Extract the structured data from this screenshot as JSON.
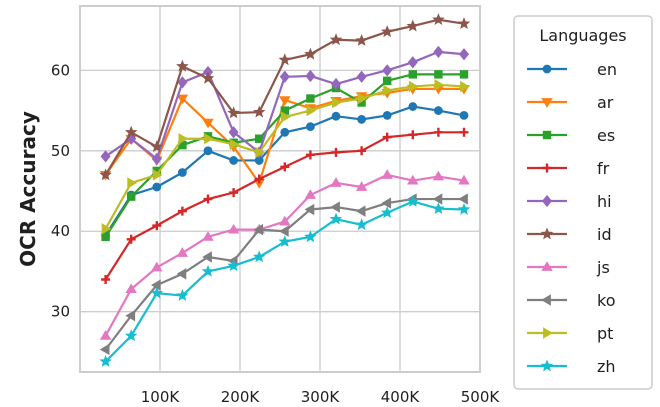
{
  "chart_data": {
    "type": "line",
    "title": "",
    "xlabel": "",
    "ylabel": "OCR Accuracy",
    "xlim": [
      0,
      500000
    ],
    "ylim": [
      22.5,
      68
    ],
    "grid": true,
    "x_ticks": [
      100000,
      200000,
      300000,
      400000,
      500000
    ],
    "x_tick_labels": [
      "100K",
      "200K",
      "300K",
      "400K",
      "500K"
    ],
    "y_ticks": [
      30,
      40,
      50,
      60
    ],
    "y_tick_labels": [
      "30",
      "40",
      "50",
      "60"
    ],
    "legend": {
      "title": "Languages",
      "placement": "right"
    },
    "x": [
      32000,
      64000,
      96000,
      128000,
      160000,
      192000,
      224000,
      256000,
      288000,
      320000,
      352000,
      384000,
      416000,
      448000,
      480000
    ],
    "series": [
      {
        "name": "en",
        "color": "#1f77b4",
        "marker": "circle",
        "values": [
          39.5,
          44.5,
          45.5,
          47.3,
          50.0,
          48.8,
          48.8,
          52.3,
          53.0,
          54.3,
          53.9,
          54.4,
          55.5,
          55.0,
          54.4
        ]
      },
      {
        "name": "ar",
        "color": "#ff7f0e",
        "marker": "triangle-down",
        "values": [
          47.0,
          51.5,
          48.8,
          56.5,
          53.5,
          50.5,
          46.0,
          56.3,
          55.3,
          56.2,
          56.8,
          57.2,
          57.7,
          57.7,
          57.7
        ]
      },
      {
        "name": "es",
        "color": "#2ca02c",
        "marker": "square",
        "values": [
          39.3,
          44.3,
          47.5,
          50.7,
          51.8,
          51.0,
          51.5,
          55.0,
          56.5,
          57.8,
          56.0,
          58.7,
          59.5,
          59.5,
          59.5
        ]
      },
      {
        "name": "fr",
        "color": "#d62728",
        "marker": "plus",
        "values": [
          34.0,
          39.0,
          40.7,
          42.5,
          44.0,
          44.8,
          46.5,
          48.0,
          49.5,
          49.8,
          50.0,
          51.7,
          52.0,
          52.3,
          52.3
        ]
      },
      {
        "name": "hi",
        "color": "#9467bd",
        "marker": "diamond",
        "values": [
          49.3,
          51.5,
          49.0,
          58.5,
          59.8,
          52.3,
          49.8,
          59.2,
          59.3,
          58.3,
          59.2,
          60.0,
          61.0,
          62.3,
          62.0
        ]
      },
      {
        "name": "id",
        "color": "#8c564b",
        "marker": "star",
        "values": [
          47.0,
          52.3,
          50.5,
          60.5,
          59.0,
          54.7,
          54.8,
          61.3,
          62.0,
          63.8,
          63.7,
          64.8,
          65.5,
          66.3,
          65.8
        ]
      },
      {
        "name": "js",
        "color": "#e377c2",
        "marker": "triangle-up",
        "values": [
          27.0,
          32.8,
          35.5,
          37.3,
          39.3,
          40.2,
          40.2,
          41.2,
          44.5,
          46.0,
          45.5,
          47.0,
          46.3,
          46.8,
          46.3
        ]
      },
      {
        "name": "ko",
        "color": "#7f7f7f",
        "marker": "triangle-left",
        "values": [
          25.3,
          29.5,
          33.3,
          34.7,
          36.8,
          36.3,
          40.2,
          40.0,
          42.7,
          43.0,
          42.5,
          43.5,
          44.0,
          44.0,
          44.0
        ]
      },
      {
        "name": "pt",
        "color": "#bcbd22",
        "marker": "triangle-right",
        "values": [
          40.3,
          46.0,
          47.0,
          51.5,
          51.5,
          50.8,
          49.8,
          54.2,
          55.0,
          56.0,
          56.5,
          57.5,
          58.0,
          58.2,
          58.0
        ]
      },
      {
        "name": "zh",
        "color": "#17becf",
        "marker": "star",
        "values": [
          23.8,
          27.0,
          32.3,
          32.0,
          35.0,
          35.7,
          36.8,
          38.7,
          39.3,
          41.5,
          40.8,
          42.3,
          43.7,
          42.8,
          42.7
        ]
      }
    ]
  }
}
